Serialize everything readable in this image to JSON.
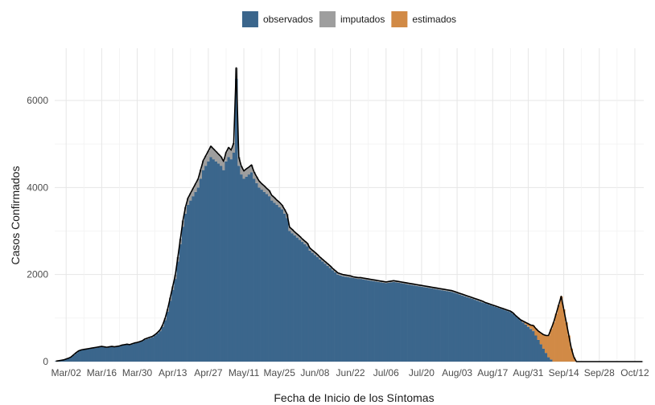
{
  "chart_data": {
    "type": "bar",
    "stacked": true,
    "title": "",
    "xlabel": "Fecha de Inicio de los Síntomas",
    "ylabel": "Casos Confirmados",
    "ylim": [
      0,
      7200
    ],
    "y_ticks": [
      0,
      2000,
      4000,
      6000
    ],
    "grid": true,
    "legend_position": "top",
    "x_start": "2020-02-27",
    "x_end": "2020-10-15",
    "x_ticks": [
      "Mar/02",
      "Mar/16",
      "Mar/30",
      "Apr/13",
      "Apr/27",
      "May/11",
      "May/25",
      "Jun/08",
      "Jun/22",
      "Jul/06",
      "Jul/20",
      "Aug/03",
      "Aug/17",
      "Aug/31",
      "Sep/14",
      "Sep/28",
      "Oct/12"
    ],
    "series": [
      {
        "name": "observados",
        "color": "#3b668c"
      },
      {
        "name": "imputados",
        "color": "#9e9e9e"
      },
      {
        "name": "estimados",
        "color": "#d18a46"
      }
    ],
    "total_line_color": "#000000",
    "observed_daily": [
      10,
      20,
      30,
      40,
      60,
      80,
      110,
      150,
      200,
      240,
      260,
      270,
      280,
      290,
      300,
      310,
      320,
      330,
      340,
      330,
      320,
      330,
      340,
      330,
      340,
      350,
      370,
      380,
      390,
      380,
      400,
      420,
      430,
      450,
      470,
      500,
      520,
      540,
      560,
      600,
      650,
      700,
      800,
      950,
      1150,
      1400,
      1650,
      1900,
      2300,
      2700,
      3100,
      3400,
      3600,
      3700,
      3800,
      3900,
      4000,
      4200,
      4400,
      4500,
      4600,
      4700,
      4650,
      4600,
      4550,
      4500,
      4400,
      4600,
      4700,
      4650,
      4800,
      6500,
      4500,
      4300,
      4200,
      4250,
      4300,
      4350,
      4200,
      4100,
      4000,
      3950,
      3900,
      3850,
      3800,
      3700,
      3650,
      3600,
      3550,
      3500,
      3400,
      3300,
      3000,
      2950,
      2900,
      2850,
      2800,
      2750,
      2700,
      2650,
      2550,
      2500,
      2450,
      2400,
      2350,
      2300,
      2250,
      2200,
      2150,
      2100,
      2050,
      2000,
      1980,
      1960,
      1950,
      1940,
      1930,
      1920,
      1910,
      1900,
      1900,
      1890,
      1880,
      1870,
      1860,
      1850,
      1840,
      1830,
      1820,
      1810,
      1800,
      1810,
      1820,
      1830,
      1820,
      1810,
      1800,
      1790,
      1780,
      1770,
      1760,
      1750,
      1740,
      1730,
      1720,
      1710,
      1700,
      1690,
      1680,
      1670,
      1660,
      1650,
      1640,
      1630,
      1620,
      1610,
      1600,
      1580,
      1560,
      1540,
      1520,
      1500,
      1480,
      1460,
      1440,
      1420,
      1400,
      1380,
      1360,
      1340,
      1320,
      1300,
      1280,
      1260,
      1240,
      1220,
      1200,
      1180,
      1160,
      1140,
      1100,
      1050,
      1000,
      950,
      900,
      850,
      800,
      750,
      700,
      600,
      500,
      400,
      300,
      200,
      100,
      50
    ],
    "imputed_daily": [
      0,
      0,
      0,
      0,
      0,
      0,
      0,
      10,
      10,
      10,
      10,
      10,
      10,
      10,
      10,
      10,
      10,
      10,
      10,
      10,
      10,
      10,
      10,
      10,
      10,
      10,
      10,
      10,
      10,
      10,
      10,
      10,
      10,
      10,
      10,
      20,
      20,
      20,
      20,
      20,
      20,
      30,
      40,
      50,
      60,
      70,
      80,
      90,
      100,
      120,
      140,
      150,
      160,
      170,
      180,
      190,
      200,
      210,
      220,
      230,
      240,
      250,
      240,
      230,
      220,
      210,
      200,
      210,
      220,
      210,
      220,
      250,
      200,
      190,
      180,
      180,
      170,
      170,
      160,
      150,
      150,
      140,
      140,
      130,
      130,
      120,
      120,
      110,
      110,
      100,
      100,
      90,
      90,
      90,
      80,
      80,
      80,
      70,
      70,
      70,
      60,
      60,
      60,
      60,
      50,
      50,
      50,
      50,
      50,
      40,
      40,
      40,
      40,
      40,
      40,
      40,
      40,
      30,
      30,
      30,
      30,
      30,
      30,
      30,
      30,
      30,
      30,
      30,
      30,
      30,
      30,
      30,
      30,
      30,
      30,
      30,
      30,
      30,
      30,
      30,
      30,
      30,
      30,
      30,
      30,
      30,
      30,
      30,
      30,
      30,
      30,
      30,
      30,
      30,
      30,
      30,
      30,
      30,
      30,
      30,
      30,
      30,
      30,
      30,
      30,
      30,
      30,
      30,
      30,
      20,
      20,
      20,
      20,
      20,
      20,
      20,
      20,
      20,
      20,
      20,
      20,
      10,
      10,
      10,
      10,
      10,
      10,
      10,
      10,
      0,
      0,
      0,
      0,
      0,
      0,
      0,
      0
    ],
    "estimated_daily": [
      0,
      0,
      0,
      0,
      0,
      0,
      0,
      0,
      0,
      0,
      0,
      0,
      0,
      0,
      0,
      0,
      0,
      0,
      0,
      0,
      0,
      0,
      0,
      0,
      0,
      0,
      0,
      0,
      0,
      0,
      0,
      0,
      0,
      0,
      0,
      0,
      0,
      0,
      0,
      0,
      0,
      0,
      0,
      0,
      0,
      0,
      0,
      0,
      0,
      0,
      0,
      0,
      0,
      0,
      0,
      0,
      0,
      0,
      0,
      0,
      0,
      0,
      0,
      0,
      0,
      0,
      0,
      0,
      0,
      0,
      0,
      0,
      0,
      0,
      0,
      0,
      0,
      0,
      0,
      0,
      0,
      0,
      0,
      0,
      0,
      0,
      0,
      0,
      0,
      0,
      0,
      0,
      0,
      0,
      0,
      0,
      0,
      0,
      0,
      0,
      0,
      0,
      0,
      0,
      0,
      0,
      0,
      0,
      0,
      0,
      0,
      0,
      0,
      0,
      0,
      0,
      0,
      0,
      0,
      0,
      0,
      0,
      0,
      0,
      0,
      0,
      0,
      0,
      0,
      0,
      0,
      0,
      0,
      0,
      0,
      0,
      0,
      0,
      0,
      0,
      0,
      0,
      0,
      0,
      0,
      0,
      0,
      0,
      0,
      0,
      0,
      0,
      0,
      0,
      0,
      0,
      0,
      0,
      0,
      0,
      0,
      0,
      0,
      0,
      0,
      0,
      0,
      0,
      0,
      0,
      0,
      0,
      0,
      0,
      0,
      0,
      0,
      0,
      0,
      0,
      0,
      0,
      0,
      0,
      20,
      40,
      60,
      80,
      120,
      160,
      200,
      260,
      320,
      400,
      500,
      700,
      900,
      1100,
      1300,
      1500,
      1200,
      900,
      600,
      300,
      100
    ]
  }
}
